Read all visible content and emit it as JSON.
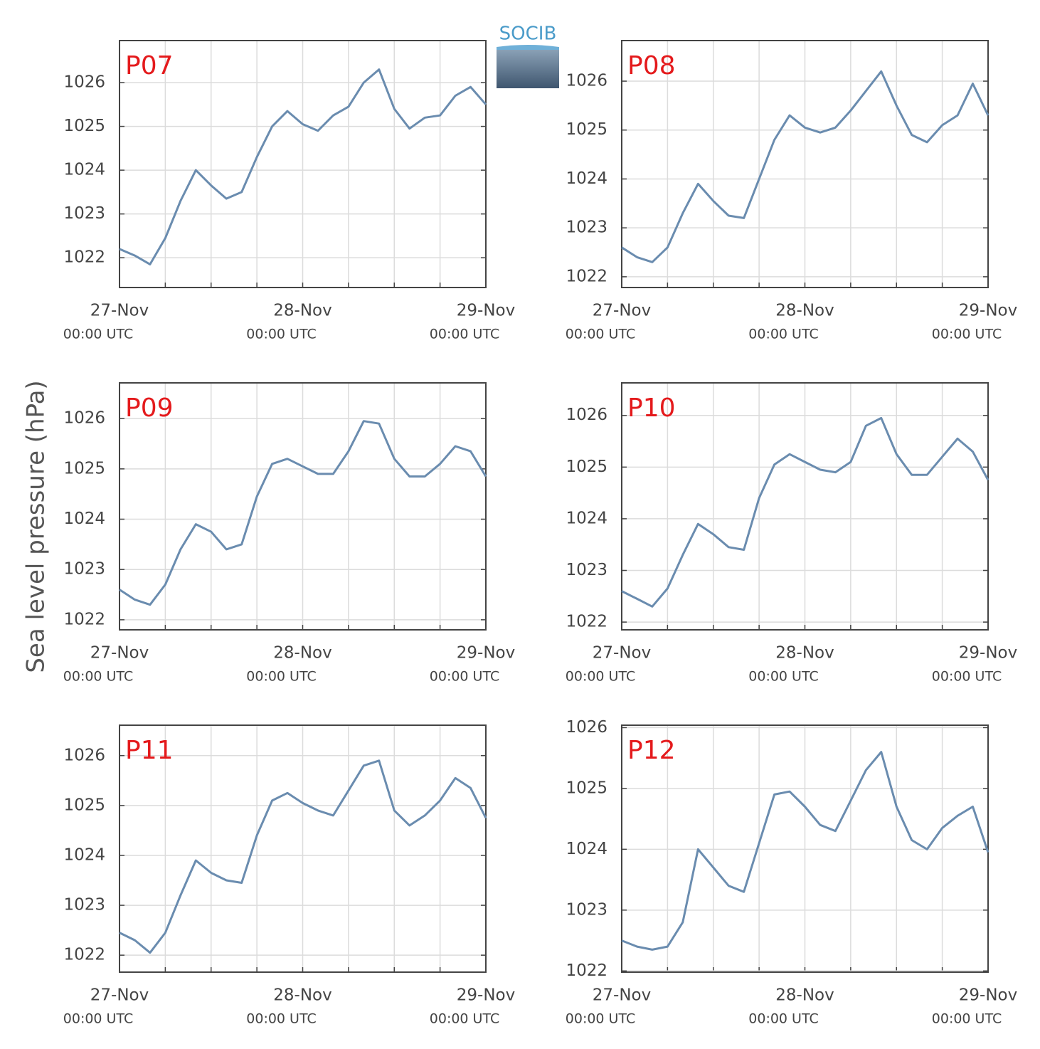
{
  "figure": {
    "ylabel": "Sea level pressure (hPa)",
    "logo": "SOCIB"
  },
  "chart_data": [
    {
      "type": "line",
      "title": "P07",
      "color": "#6a8caf",
      "grid": true,
      "x": [
        0,
        2,
        4,
        6,
        8,
        10,
        12,
        14,
        16,
        18,
        20,
        22,
        24,
        26,
        28,
        30,
        32,
        34,
        36,
        38,
        40,
        42,
        44,
        46,
        48
      ],
      "values": [
        1022.2,
        1022.05,
        1021.85,
        1022.45,
        1023.3,
        1024.0,
        1023.65,
        1023.35,
        1023.5,
        1024.3,
        1025.0,
        1025.35,
        1025.05,
        1024.9,
        1025.25,
        1025.45,
        1026.0,
        1026.3,
        1025.4,
        1024.95,
        1025.2,
        1025.25,
        1025.7,
        1025.9,
        1025.5
      ],
      "xlim": [
        0,
        48
      ],
      "ylim": [
        1021.32,
        1026.96
      ],
      "yticks": [
        1022,
        1023,
        1024,
        1025,
        1026
      ],
      "xticks": [
        {
          "value": 0,
          "label": "27-Nov",
          "sublabel": "00:00 UTC"
        },
        {
          "value": 6,
          "label": null
        },
        {
          "value": 12,
          "label": null
        },
        {
          "value": 18,
          "label": null
        },
        {
          "value": 24,
          "label": "28-Nov",
          "sublabel": "00:00 UTC"
        },
        {
          "value": 30,
          "label": null
        },
        {
          "value": 36,
          "label": null
        },
        {
          "value": 42,
          "label": null
        },
        {
          "value": 48,
          "label": "29-Nov",
          "sublabel": "00:00 UTC"
        }
      ]
    },
    {
      "type": "line",
      "title": "P08",
      "color": "#6a8caf",
      "grid": true,
      "x": [
        0,
        2,
        4,
        6,
        8,
        10,
        12,
        14,
        16,
        18,
        20,
        22,
        24,
        26,
        28,
        30,
        32,
        34,
        36,
        38,
        40,
        42,
        44,
        46,
        48
      ],
      "values": [
        1022.6,
        1022.4,
        1022.3,
        1022.6,
        1023.3,
        1023.9,
        1023.55,
        1023.25,
        1023.2,
        1024.0,
        1024.8,
        1025.3,
        1025.05,
        1024.95,
        1025.05,
        1025.4,
        1025.8,
        1026.2,
        1025.5,
        1024.9,
        1024.75,
        1025.1,
        1025.3,
        1025.95,
        1025.3
      ],
      "xlim": [
        0,
        48
      ],
      "ylim": [
        1021.78,
        1026.83
      ],
      "yticks": [
        1022,
        1023,
        1024,
        1025,
        1026
      ],
      "xticks": [
        {
          "value": 0,
          "label": "27-Nov",
          "sublabel": "00:00 UTC"
        },
        {
          "value": 6,
          "label": null
        },
        {
          "value": 12,
          "label": null
        },
        {
          "value": 18,
          "label": null
        },
        {
          "value": 24,
          "label": "28-Nov",
          "sublabel": "00:00 UTC"
        },
        {
          "value": 30,
          "label": null
        },
        {
          "value": 36,
          "label": null
        },
        {
          "value": 42,
          "label": null
        },
        {
          "value": 48,
          "label": "29-Nov",
          "sublabel": "00:00 UTC"
        }
      ]
    },
    {
      "type": "line",
      "title": "P09",
      "color": "#6a8caf",
      "grid": true,
      "x": [
        0,
        2,
        4,
        6,
        8,
        10,
        12,
        14,
        16,
        18,
        20,
        22,
        24,
        26,
        28,
        30,
        32,
        34,
        36,
        38,
        40,
        42,
        44,
        46,
        48
      ],
      "values": [
        1022.6,
        1022.4,
        1022.3,
        1022.7,
        1023.4,
        1023.9,
        1023.75,
        1023.4,
        1023.5,
        1024.45,
        1025.1,
        1025.2,
        1025.05,
        1024.9,
        1024.9,
        1025.35,
        1025.95,
        1025.9,
        1025.2,
        1024.85,
        1024.85,
        1025.1,
        1025.45,
        1025.35,
        1024.85
      ],
      "xlim": [
        0,
        48
      ],
      "ylim": [
        1021.8,
        1026.71
      ],
      "yticks": [
        1022,
        1023,
        1024,
        1025,
        1026
      ],
      "xticks": [
        {
          "value": 0,
          "label": "27-Nov",
          "sublabel": "00:00 UTC"
        },
        {
          "value": 6,
          "label": null
        },
        {
          "value": 12,
          "label": null
        },
        {
          "value": 18,
          "label": null
        },
        {
          "value": 24,
          "label": "28-Nov",
          "sublabel": "00:00 UTC"
        },
        {
          "value": 30,
          "label": null
        },
        {
          "value": 36,
          "label": null
        },
        {
          "value": 42,
          "label": null
        },
        {
          "value": 48,
          "label": "29-Nov",
          "sublabel": "00:00 UTC"
        }
      ]
    },
    {
      "type": "line",
      "title": "P10",
      "color": "#6a8caf",
      "grid": true,
      "x": [
        0,
        2,
        4,
        6,
        8,
        10,
        12,
        14,
        16,
        18,
        20,
        22,
        24,
        26,
        28,
        30,
        32,
        34,
        36,
        38,
        40,
        42,
        44,
        46,
        48
      ],
      "values": [
        1022.6,
        1022.45,
        1022.3,
        1022.65,
        1023.3,
        1023.9,
        1023.7,
        1023.45,
        1023.4,
        1024.4,
        1025.05,
        1025.25,
        1025.1,
        1024.95,
        1024.9,
        1025.1,
        1025.8,
        1025.95,
        1025.25,
        1024.85,
        1024.85,
        1025.2,
        1025.55,
        1025.3,
        1024.75
      ],
      "xlim": [
        0,
        48
      ],
      "ylim": [
        1021.85,
        1026.63
      ],
      "yticks": [
        1022,
        1023,
        1024,
        1025,
        1026
      ],
      "xticks": [
        {
          "value": 0,
          "label": "27-Nov",
          "sublabel": "00:00 UTC"
        },
        {
          "value": 6,
          "label": null
        },
        {
          "value": 12,
          "label": null
        },
        {
          "value": 18,
          "label": null
        },
        {
          "value": 24,
          "label": "28-Nov",
          "sublabel": "00:00 UTC"
        },
        {
          "value": 30,
          "label": null
        },
        {
          "value": 36,
          "label": null
        },
        {
          "value": 42,
          "label": null
        },
        {
          "value": 48,
          "label": "29-Nov",
          "sublabel": "00:00 UTC"
        }
      ]
    },
    {
      "type": "line",
      "title": "P11",
      "color": "#6a8caf",
      "grid": true,
      "x": [
        0,
        2,
        4,
        6,
        8,
        10,
        12,
        14,
        16,
        18,
        20,
        22,
        24,
        26,
        28,
        30,
        32,
        34,
        36,
        38,
        40,
        42,
        44,
        46,
        48
      ],
      "values": [
        1022.45,
        1022.3,
        1022.05,
        1022.45,
        1023.2,
        1023.9,
        1023.65,
        1023.5,
        1023.45,
        1024.4,
        1025.1,
        1025.25,
        1025.05,
        1024.9,
        1024.8,
        1025.3,
        1025.8,
        1025.9,
        1024.9,
        1024.6,
        1024.8,
        1025.1,
        1025.55,
        1025.35,
        1024.75
      ],
      "xlim": [
        0,
        48
      ],
      "ylim": [
        1021.66,
        1026.61
      ],
      "yticks": [
        1022,
        1023,
        1024,
        1025,
        1026
      ],
      "xticks": [
        {
          "value": 0,
          "label": "27-Nov",
          "sublabel": "00:00 UTC"
        },
        {
          "value": 6,
          "label": null
        },
        {
          "value": 12,
          "label": null
        },
        {
          "value": 18,
          "label": null
        },
        {
          "value": 24,
          "label": "28-Nov",
          "sublabel": "00:00 UTC"
        },
        {
          "value": 30,
          "label": null
        },
        {
          "value": 36,
          "label": null
        },
        {
          "value": 42,
          "label": null
        },
        {
          "value": 48,
          "label": "29-Nov",
          "sublabel": "00:00 UTC"
        }
      ]
    },
    {
      "type": "line",
      "title": "P12",
      "color": "#6a8caf",
      "grid": true,
      "x": [
        0,
        2,
        4,
        6,
        8,
        10,
        12,
        14,
        16,
        18,
        20,
        22,
        24,
        26,
        28,
        30,
        32,
        34,
        36,
        38,
        40,
        42,
        44,
        46,
        48
      ],
      "values": [
        1022.5,
        1022.4,
        1022.35,
        1022.4,
        1022.8,
        1024.0,
        1023.7,
        1023.4,
        1023.3,
        1024.1,
        1024.9,
        1024.95,
        1024.7,
        1024.4,
        1024.3,
        1024.8,
        1025.3,
        1025.6,
        1024.7,
        1024.15,
        1024.0,
        1024.35,
        1024.55,
        1024.7,
        1023.95
      ],
      "xlim": [
        0,
        48
      ],
      "ylim": [
        1021.98,
        1026.04
      ],
      "yticks": [
        1022,
        1023,
        1024,
        1025,
        1026
      ],
      "xticks": [
        {
          "value": 0,
          "label": "27-Nov",
          "sublabel": "00:00 UTC"
        },
        {
          "value": 6,
          "label": null
        },
        {
          "value": 12,
          "label": null
        },
        {
          "value": 18,
          "label": null
        },
        {
          "value": 24,
          "label": "28-Nov",
          "sublabel": "00:00 UTC"
        },
        {
          "value": 30,
          "label": null
        },
        {
          "value": 36,
          "label": null
        },
        {
          "value": 42,
          "label": null
        },
        {
          "value": 48,
          "label": "29-Nov",
          "sublabel": "00:00 UTC"
        }
      ]
    }
  ]
}
